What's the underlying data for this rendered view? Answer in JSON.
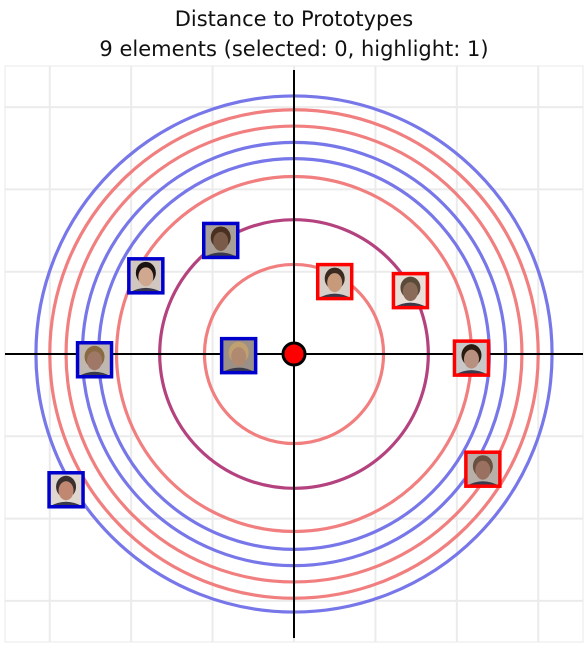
{
  "chart_data": {
    "type": "scatter",
    "title": "Distance to Prototypes",
    "subtitle": "9 elements (selected: 0, highlight: 1)",
    "xlabel": "",
    "ylabel": "",
    "xlim": [
      -3.55,
      3.55
    ],
    "ylim": [
      -3.5,
      3.5
    ],
    "grid": true,
    "legend": "none",
    "center": {
      "x": 0,
      "y": 0,
      "color": "#ff0000"
    },
    "rings": [
      {
        "radius": 1.1,
        "color": "#f07878"
      },
      {
        "radius": 1.65,
        "color": "#b03878"
      },
      {
        "radius": 2.18,
        "color": "#f07878"
      },
      {
        "radius": 2.4,
        "color": "#7070e8"
      },
      {
        "radius": 2.6,
        "color": "#7070e8"
      },
      {
        "radius": 2.8,
        "color": "#f07878"
      },
      {
        "radius": 3.0,
        "color": "#f07878"
      },
      {
        "radius": 3.17,
        "color": "#7070e8"
      }
    ],
    "series": [
      {
        "color": "#ff0000",
        "points": [
          {
            "x": 0.5,
            "y": 0.88
          },
          {
            "x": 1.43,
            "y": 0.77
          },
          {
            "x": 2.18,
            "y": -0.05
          },
          {
            "x": 2.32,
            "y": -1.4
          }
        ]
      },
      {
        "color": "#0000cc",
        "points": [
          {
            "x": -0.9,
            "y": 1.38
          },
          {
            "x": -1.82,
            "y": 0.95
          },
          {
            "x": -2.45,
            "y": -0.07
          },
          {
            "x": -2.8,
            "y": -1.65
          },
          {
            "x": -0.68,
            "y": -0.02
          }
        ]
      }
    ]
  },
  "colors": {
    "red_frame": "#ff0000",
    "blue_frame": "#0000cc",
    "red_ring": "#f07878",
    "blue_ring": "#7070e8",
    "highlight_ring": "#b03878",
    "grid": "#ebebeb",
    "axis": "#000000"
  }
}
